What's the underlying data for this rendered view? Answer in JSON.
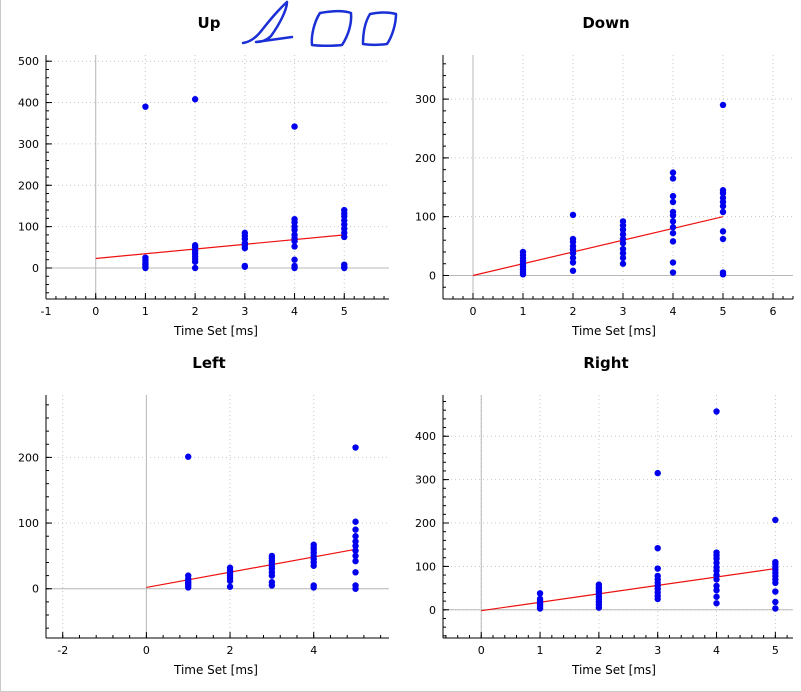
{
  "chart_data": [
    {
      "type": "scatter",
      "title": "Up",
      "xlabel": "Time Set [ms]",
      "ylabel": "",
      "xlim": [
        -1,
        5.9
      ],
      "ylim": [
        -75,
        515
      ],
      "xticks": [
        -1,
        0,
        1,
        2,
        3,
        4,
        5
      ],
      "yticks": [
        0,
        100,
        200,
        300,
        400,
        500
      ],
      "grid": true,
      "points": {
        "x": [
          1,
          1,
          1,
          1,
          1,
          1,
          1,
          2,
          2,
          2,
          2,
          2,
          2,
          2,
          2,
          2,
          3,
          3,
          3,
          3,
          3,
          3,
          3,
          3,
          4,
          4,
          4,
          4,
          4,
          4,
          4,
          4,
          4,
          4,
          4,
          4,
          5,
          5,
          5,
          5,
          5,
          5,
          5,
          5,
          5,
          5,
          5
        ],
        "y": [
          390,
          25,
          18,
          12,
          8,
          4,
          0,
          408,
          55,
          50,
          42,
          35,
          28,
          22,
          15,
          0,
          85,
          78,
          70,
          60,
          55,
          48,
          5,
          3,
          342,
          118,
          110,
          100,
          92,
          80,
          72,
          65,
          52,
          20,
          5,
          0,
          140,
          132,
          125,
          115,
          105,
          95,
          85,
          75,
          8,
          3,
          0
        ]
      },
      "trend": {
        "x": [
          0,
          5
        ],
        "y": [
          23,
          80
        ]
      },
      "annotation": "handwritten scribbles"
    },
    {
      "type": "scatter",
      "title": "Down",
      "xlabel": "Time Set [ms]",
      "ylabel": "",
      "xlim": [
        -0.6,
        6.4
      ],
      "ylim": [
        -40,
        375
      ],
      "xticks": [
        0,
        1,
        2,
        3,
        4,
        5,
        6
      ],
      "yticks": [
        0,
        100,
        200,
        300
      ],
      "grid": true,
      "points": {
        "x": [
          1,
          1,
          1,
          1,
          1,
          1,
          1,
          1,
          1,
          2,
          2,
          2,
          2,
          2,
          2,
          2,
          2,
          2,
          3,
          3,
          3,
          3,
          3,
          3,
          3,
          3,
          3,
          3,
          4,
          4,
          4,
          4,
          4,
          4,
          4,
          4,
          4,
          4,
          4,
          4,
          5,
          5,
          5,
          5,
          5,
          5,
          5,
          5,
          5,
          5,
          5
        ],
        "y": [
          40,
          35,
          30,
          25,
          20,
          15,
          10,
          5,
          2,
          103,
          62,
          57,
          50,
          44,
          38,
          30,
          22,
          8,
          92,
          85,
          78,
          70,
          62,
          55,
          45,
          38,
          30,
          20,
          175,
          165,
          135,
          125,
          108,
          102,
          92,
          82,
          72,
          58,
          22,
          5,
          290,
          145,
          140,
          132,
          125,
          118,
          108,
          75,
          62,
          5,
          2
        ]
      },
      "trend": {
        "x": [
          0,
          5
        ],
        "y": [
          0,
          100
        ]
      }
    },
    {
      "type": "scatter",
      "title": "Left",
      "xlabel": "Time Set [ms]",
      "ylabel": "",
      "xlim": [
        -2.4,
        5.8
      ],
      "ylim": [
        -75,
        295
      ],
      "xticks": [
        -2,
        0,
        2,
        4
      ],
      "yticks": [
        0,
        100,
        200
      ],
      "grid": true,
      "points": {
        "x": [
          1,
          1,
          1,
          1,
          1,
          1,
          1,
          2,
          2,
          2,
          2,
          2,
          2,
          2,
          3,
          3,
          3,
          3,
          3,
          3,
          3,
          3,
          3,
          3,
          4,
          4,
          4,
          4,
          4,
          4,
          4,
          4,
          4,
          4,
          5,
          5,
          5,
          5,
          5,
          5,
          5,
          5,
          5,
          5,
          5,
          5
        ],
        "y": [
          201,
          20,
          15,
          11,
          8,
          5,
          2,
          32,
          28,
          24,
          20,
          16,
          12,
          3,
          50,
          46,
          42,
          38,
          34,
          30,
          25,
          20,
          10,
          5,
          67,
          63,
          60,
          55,
          50,
          45,
          40,
          35,
          5,
          2,
          215,
          102,
          90,
          80,
          72,
          65,
          58,
          50,
          42,
          25,
          5,
          0
        ]
      },
      "trend": {
        "x": [
          0,
          5
        ],
        "y": [
          2,
          60
        ]
      }
    },
    {
      "type": "scatter",
      "title": "Right",
      "xlabel": "Time Set [ms]",
      "ylabel": "",
      "xlim": [
        -0.65,
        5.3
      ],
      "ylim": [
        -65,
        495
      ],
      "xticks": [
        0,
        1,
        2,
        3,
        4,
        5
      ],
      "yticks": [
        0,
        100,
        200,
        300,
        400
      ],
      "grid": true,
      "points": {
        "x": [
          1,
          1,
          1,
          1,
          1,
          1,
          1,
          2,
          2,
          2,
          2,
          2,
          2,
          2,
          2,
          2,
          2,
          3,
          3,
          3,
          3,
          3,
          3,
          3,
          3,
          3,
          3,
          3,
          4,
          4,
          4,
          4,
          4,
          4,
          4,
          4,
          4,
          4,
          4,
          4,
          4,
          5,
          5,
          5,
          5,
          5,
          5,
          5,
          5,
          5,
          5,
          5,
          5
        ],
        "y": [
          38,
          25,
          20,
          16,
          12,
          8,
          3,
          58,
          52,
          48,
          42,
          36,
          30,
          24,
          18,
          12,
          5,
          315,
          142,
          95,
          78,
          70,
          62,
          55,
          48,
          40,
          32,
          25,
          457,
          132,
          125,
          118,
          108,
          98,
          90,
          80,
          70,
          55,
          45,
          30,
          15,
          207,
          110,
          105,
          98,
          92,
          85,
          78,
          70,
          62,
          42,
          18,
          3
        ]
      },
      "trend": {
        "x": [
          0,
          5
        ],
        "y": [
          -2,
          95
        ]
      }
    }
  ],
  "colors": {
    "points": "#0000ee",
    "trend": "#ee1111",
    "zero_line": "#b8b8b8",
    "grid": "#c8c8c8",
    "scribble": "#1a2fd6"
  }
}
